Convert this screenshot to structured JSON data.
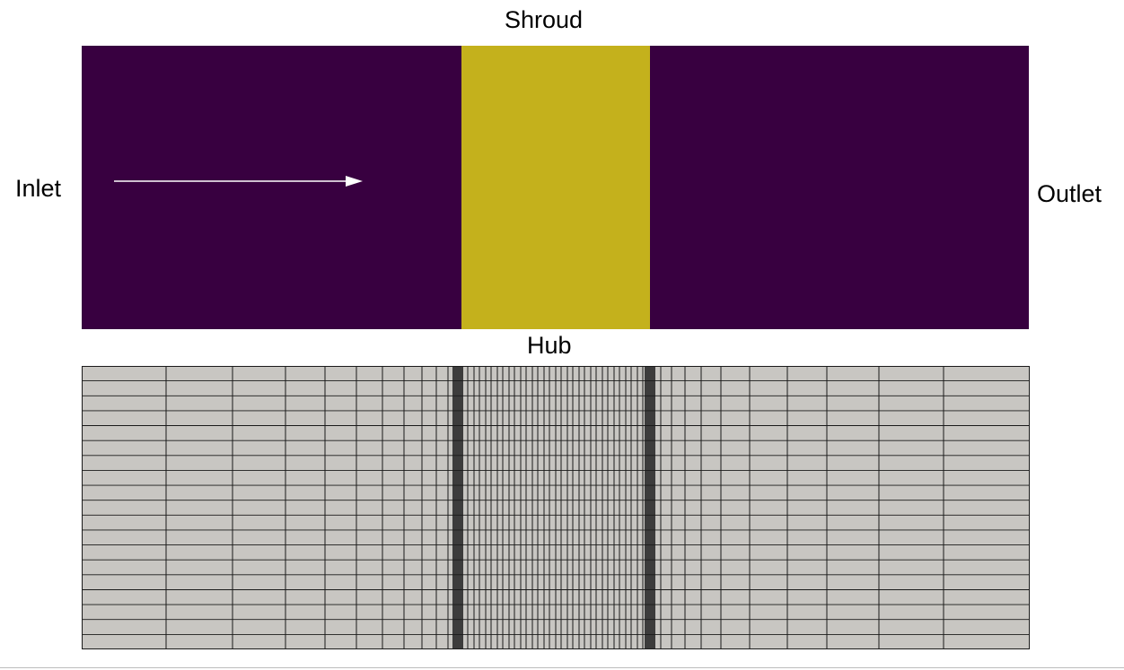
{
  "labels": {
    "shroud": "Shroud",
    "inlet": "Inlet",
    "outlet": "Outlet",
    "hub": "Hub"
  },
  "colors": {
    "fluid_zone": "#380040",
    "rotor_zone": "#c4b11c",
    "flow_arrow": "#ffffff",
    "mesh_fill": "#c8c6c2",
    "mesh_line": "#1a1a1a"
  },
  "icons": {
    "flow_direction": "arrow-right-icon"
  }
}
